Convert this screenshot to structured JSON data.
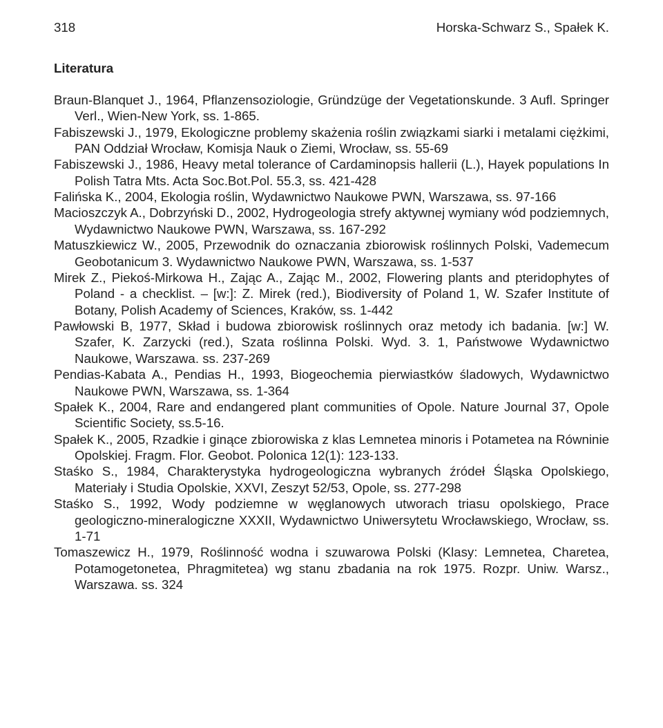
{
  "header": {
    "page_number": "318",
    "authors": "Horska-Schwarz S., Spałek K."
  },
  "section_heading": "Literatura",
  "references": [
    "Braun-Blanquet J., 1964, Pflanzensoziologie, Gründzüge der Vegetationskunde. 3 Aufl. Springer Verl., Wien-New York, ss. 1-865.",
    "Fabiszewski J., 1979, Ekologiczne problemy skażenia roślin związkami siarki i metalami ciężkimi, PAN Oddział Wrocław, Komisja Nauk o Ziemi, Wrocław, ss. 55-69",
    "Fabiszewski J., 1986, Heavy metal tolerance of Cardaminopsis hallerii (L.), Hayek populations In Polish Tatra Mts. Acta Soc.Bot.Pol. 55.3, ss. 421-428",
    "Falińska K., 2004, Ekologia roślin, Wydawnictwo Naukowe PWN, Warszawa, ss. 97-166",
    "Macioszczyk A., Dobrzyński D., 2002, Hydrogeologia strefy aktywnej wymiany wód podziemnych, Wydawnictwo Naukowe PWN, Warszawa, ss. 167-292",
    "Matuszkiewicz W., 2005, Przewodnik do oznaczania zbiorowisk roślinnych Polski, Vademecum Geobotanicum 3. Wydawnictwo Naukowe PWN, Warszawa, ss. 1-537",
    "Mirek Z., Piekoś-Mirkowa H., Zając A., Zając M., 2002, Flowering plants and pteridophytes of Poland - a checklist. – [w:]: Z. Mirek (red.), Biodiversity of Poland 1, W. Szafer Institute of Botany, Polish Academy of Sciences, Kraków, ss. 1-442",
    "Pawłowski B, 1977, Skład i budowa zbiorowisk roślinnych oraz metody ich badania. [w:] W. Szafer, K. Zarzycki (red.), Szata roślinna Polski. Wyd. 3. 1, Państwowe Wydawnictwo Naukowe, Warszawa. ss. 237-269",
    "Pendias-Kabata A., Pendias H., 1993, Biogeochemia pierwiastków śladowych, Wydawnictwo Naukowe PWN, Warszawa, ss. 1-364",
    "Spałek K., 2004, Rare and endangered plant communities of Opole. Nature Journal 37, Opole Scientific Society, ss.5-16.",
    "Spałek K., 2005, Rzadkie i ginące zbiorowiska z klas Lemnetea minoris i Potametea na Równinie Opolskiej. Fragm. Flor. Geobot. Polonica 12(1): 123-133.",
    "Staśko S., 1984, Charakterystyka hydrogeologiczna wybranych źródeł Śląska Opolskiego, Materiały i Studia Opolskie, XXVI, Zeszyt 52/53, Opole, ss. 277-298",
    "Staśko S., 1992, Wody podziemne w węglanowych utworach triasu opolskiego, Prace geologiczno-mineralogiczne XXXII, Wydawnictwo Uniwersytetu Wrocławskiego, Wrocław, ss. 1-71",
    "Tomaszewicz H., 1979, Roślinność wodna i szuwarowa Polski (Klasy: Lemnetea, Charetea, Potamogetonetea, Phragmitetea) wg stanu zbadania na rok 1975. Rozpr. Uniw. Warsz., Warszawa. ss. 324"
  ]
}
